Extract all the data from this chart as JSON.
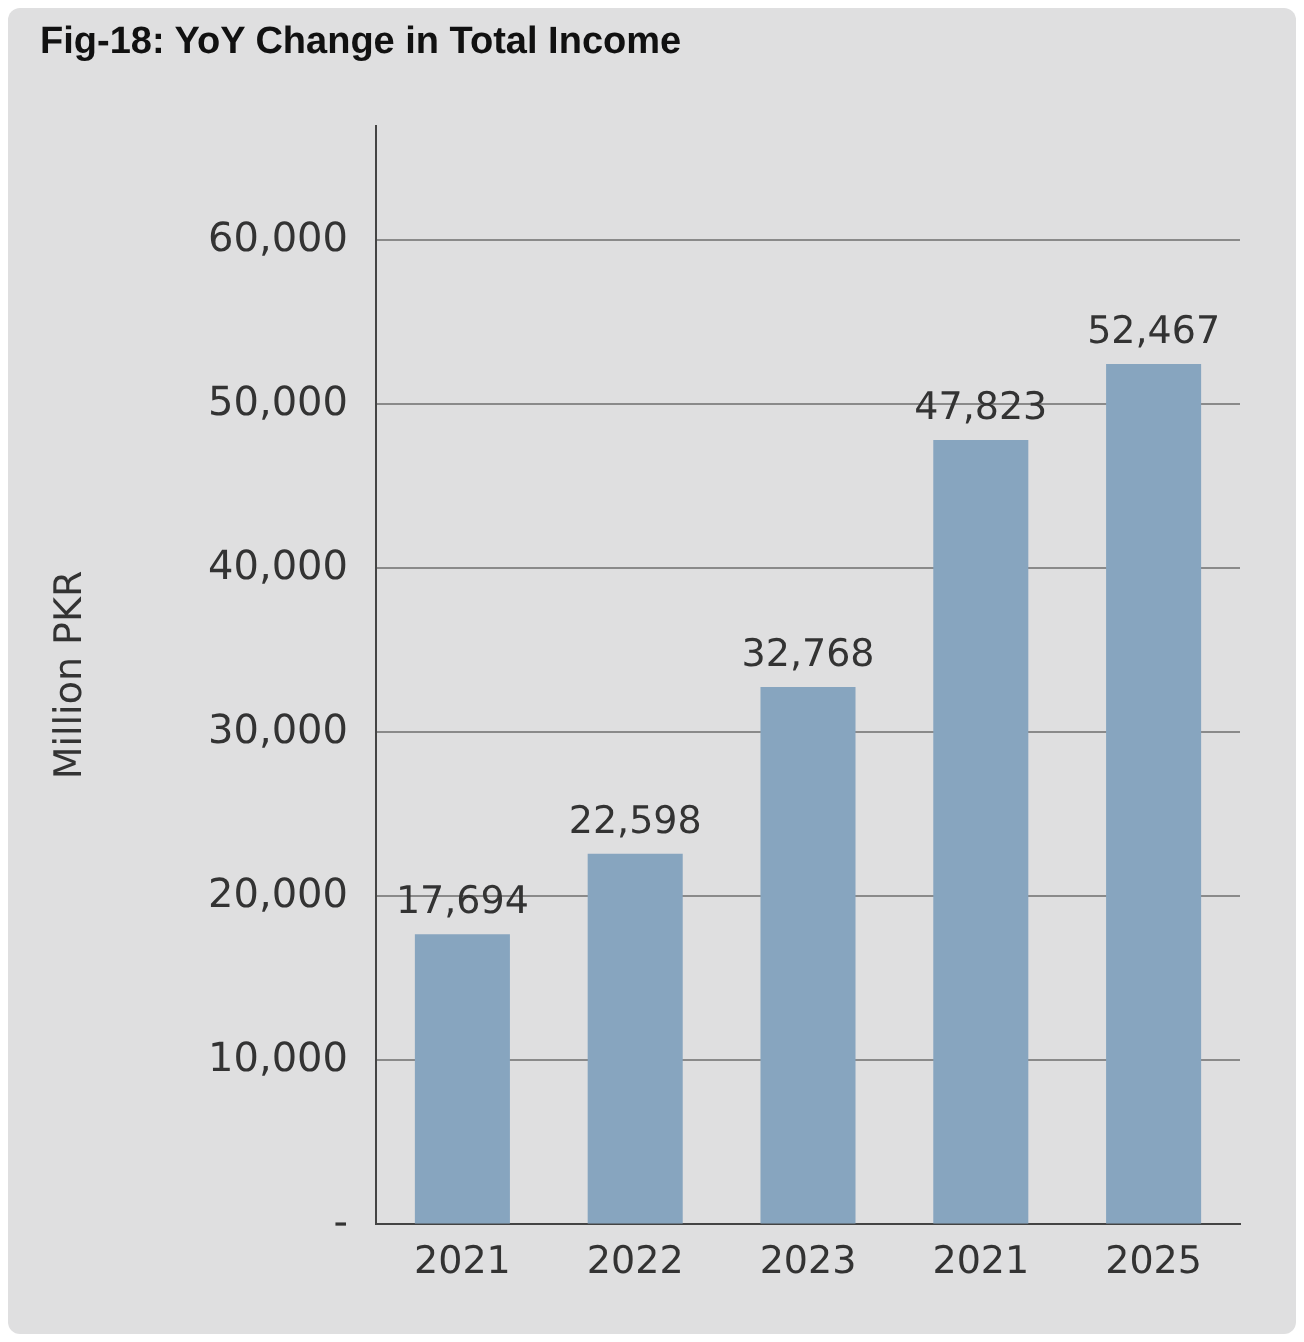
{
  "chart_data": {
    "type": "bar",
    "title": "Fig-18: YoY Change in Total Income",
    "ylabel": "Million PKR",
    "categories": [
      "2021",
      "2022",
      "2023",
      "2021",
      "2025"
    ],
    "values": [
      17694,
      22598,
      32768,
      47823,
      52467
    ],
    "color": "#87a5bf",
    "value_labels": [
      "17,694",
      "22,598",
      "32,768",
      "47,823",
      "52,467"
    ],
    "ylim": [
      0,
      67000
    ],
    "yticks": [
      {
        "value": 0,
        "label": "-"
      },
      {
        "value": 10000,
        "label": "10,000"
      },
      {
        "value": 20000,
        "label": "20,000"
      },
      {
        "value": 30000,
        "label": "30,000"
      },
      {
        "value": 40000,
        "label": "40,000"
      },
      {
        "value": 50000,
        "label": "50,000"
      },
      {
        "value": 60000,
        "label": "60,000"
      }
    ],
    "grid": "y",
    "legend": false
  }
}
